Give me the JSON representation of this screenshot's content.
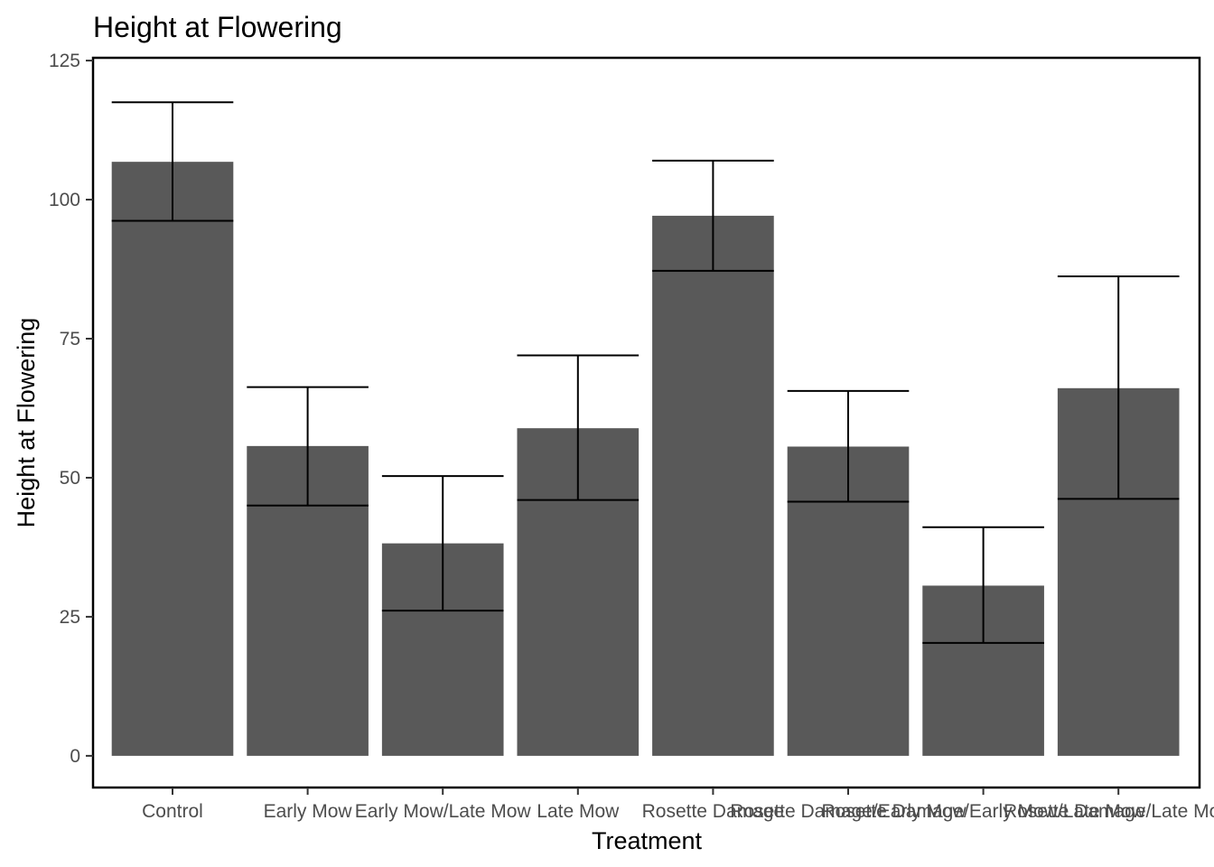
{
  "chart_data": {
    "type": "bar",
    "title": "Height at Flowering",
    "xlabel": "Treatment",
    "ylabel": "Height at Flowering",
    "categories": [
      "Control",
      "Early Mow",
      "Early Mow/Late Mow",
      "Late Mow",
      "Rosette Damage",
      "Rosette Damage/Early Mow",
      "Rosette Damage/Early Mow/Late Mow",
      "Rosette Damage/Late Mow"
    ],
    "values": [
      106.8,
      55.7,
      38.2,
      58.9,
      97.1,
      55.6,
      30.6,
      66.1
    ],
    "error_low": [
      96.2,
      45.0,
      26.1,
      46.0,
      87.2,
      45.7,
      20.3,
      46.2
    ],
    "error_high": [
      117.5,
      66.3,
      50.3,
      72.0,
      107.0,
      65.6,
      41.1,
      86.2
    ],
    "ylim": [
      -5.7,
      125.5
    ],
    "yticks": [
      0,
      25,
      50,
      75,
      100,
      125
    ],
    "grid": false,
    "bar_color": "#595959",
    "error_color": "#000000"
  }
}
